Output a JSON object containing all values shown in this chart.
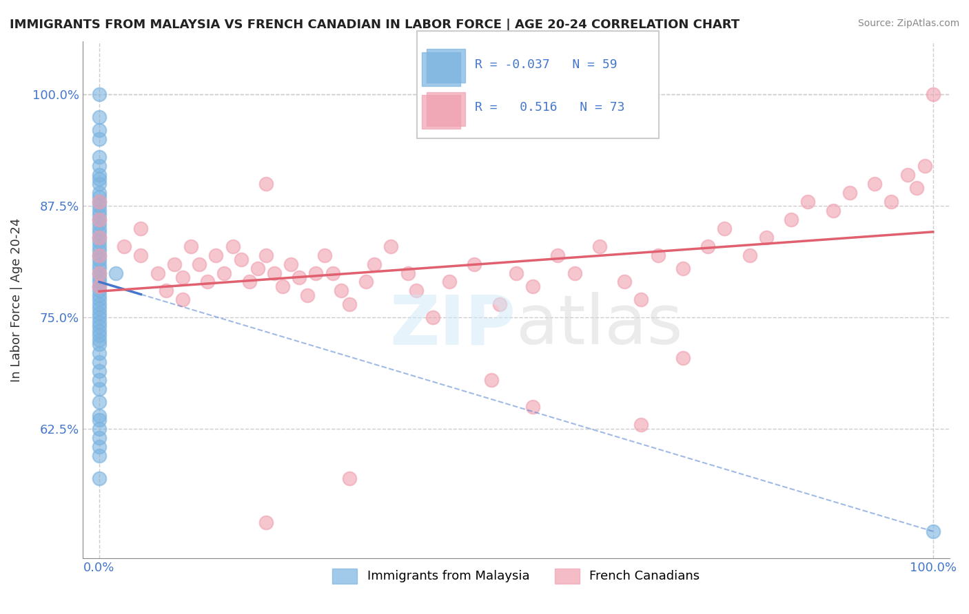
{
  "title": "IMMIGRANTS FROM MALAYSIA VS FRENCH CANADIAN IN LABOR FORCE | AGE 20-24 CORRELATION CHART",
  "source": "Source: ZipAtlas.com",
  "xlabel": "",
  "ylabel": "In Labor Force | Age 20-24",
  "xlim": [
    -2,
    102
  ],
  "ylim": [
    48,
    106
  ],
  "xticks": [
    0,
    25,
    50,
    75,
    100
  ],
  "xticklabels": [
    "0.0%",
    "",
    "",
    "",
    "100.0%"
  ],
  "ytick_positions": [
    62.5,
    75.0,
    87.5,
    100.0
  ],
  "ytick_labels": [
    "62.5%",
    "75.0%",
    "87.5%",
    "100.0%"
  ],
  "blue_R": -0.037,
  "blue_N": 59,
  "pink_R": 0.516,
  "pink_N": 73,
  "blue_color": "#7ab3e0",
  "pink_color": "#f0a0b0",
  "blue_line_color": "#4477cc",
  "pink_line_color": "#e06070",
  "grid_color": "#cccccc",
  "background_color": "#ffffff",
  "watermark": "ZIPatlas",
  "blue_scatter_x": [
    0.0,
    0.0,
    0.0,
    0.0,
    0.0,
    0.0,
    0.0,
    0.0,
    0.0,
    0.0,
    0.0,
    0.0,
    0.0,
    0.0,
    0.0,
    0.0,
    0.0,
    0.0,
    0.0,
    0.0,
    0.0,
    0.0,
    0.0,
    0.0,
    0.0,
    0.0,
    0.0,
    0.0,
    0.0,
    0.0,
    0.0,
    0.0,
    0.0,
    0.0,
    0.0,
    0.0,
    0.0,
    0.0,
    0.0,
    0.0,
    0.0,
    0.0,
    0.0,
    0.0,
    0.0,
    0.0,
    0.0,
    0.0,
    0.0,
    0.0,
    0.0,
    0.0,
    0.0,
    0.0,
    0.0,
    0.0,
    0.0,
    2.0,
    100.0
  ],
  "blue_scatter_y": [
    100.0,
    97.5,
    96.0,
    95.0,
    93.0,
    92.0,
    91.0,
    90.5,
    90.0,
    89.0,
    88.5,
    88.0,
    87.5,
    87.0,
    86.5,
    86.0,
    85.5,
    85.0,
    84.5,
    84.0,
    83.5,
    83.0,
    82.5,
    82.0,
    81.5,
    81.0,
    80.5,
    80.0,
    79.5,
    79.0,
    78.5,
    78.0,
    77.5,
    77.0,
    76.5,
    76.0,
    75.5,
    75.0,
    74.5,
    74.0,
    73.5,
    73.0,
    72.5,
    72.0,
    71.0,
    70.0,
    69.0,
    68.0,
    67.0,
    65.5,
    64.0,
    63.5,
    62.5,
    61.5,
    60.5,
    59.5,
    57.0,
    80.0,
    51.0
  ],
  "pink_scatter_x": [
    0.0,
    0.0,
    0.0,
    0.0,
    0.0,
    0.0,
    3.0,
    5.0,
    5.0,
    7.0,
    8.0,
    9.0,
    10.0,
    10.0,
    11.0,
    12.0,
    13.0,
    14.0,
    15.0,
    16.0,
    17.0,
    18.0,
    19.0,
    20.0,
    21.0,
    22.0,
    23.0,
    24.0,
    25.0,
    26.0,
    27.0,
    28.0,
    29.0,
    30.0,
    32.0,
    33.0,
    35.0,
    37.0,
    38.0,
    40.0,
    42.0,
    45.0,
    48.0,
    50.0,
    52.0,
    55.0,
    57.0,
    60.0,
    63.0,
    65.0,
    67.0,
    70.0,
    73.0,
    75.0,
    78.0,
    80.0,
    83.0,
    85.0,
    88.0,
    90.0,
    93.0,
    95.0,
    97.0,
    98.0,
    99.0,
    100.0,
    47.0,
    70.0,
    30.0,
    20.0,
    52.0,
    65.0,
    20.0
  ],
  "pink_scatter_y": [
    88.0,
    86.0,
    84.0,
    82.0,
    80.0,
    78.5,
    83.0,
    85.0,
    82.0,
    80.0,
    78.0,
    81.0,
    79.5,
    77.0,
    83.0,
    81.0,
    79.0,
    82.0,
    80.0,
    83.0,
    81.5,
    79.0,
    80.5,
    82.0,
    80.0,
    78.5,
    81.0,
    79.5,
    77.5,
    80.0,
    82.0,
    80.0,
    78.0,
    76.5,
    79.0,
    81.0,
    83.0,
    80.0,
    78.0,
    75.0,
    79.0,
    81.0,
    76.5,
    80.0,
    78.5,
    82.0,
    80.0,
    83.0,
    79.0,
    77.0,
    82.0,
    80.5,
    83.0,
    85.0,
    82.0,
    84.0,
    86.0,
    88.0,
    87.0,
    89.0,
    90.0,
    88.0,
    91.0,
    89.5,
    92.0,
    100.0,
    68.0,
    70.5,
    57.0,
    90.0,
    65.0,
    63.0,
    52.0
  ]
}
